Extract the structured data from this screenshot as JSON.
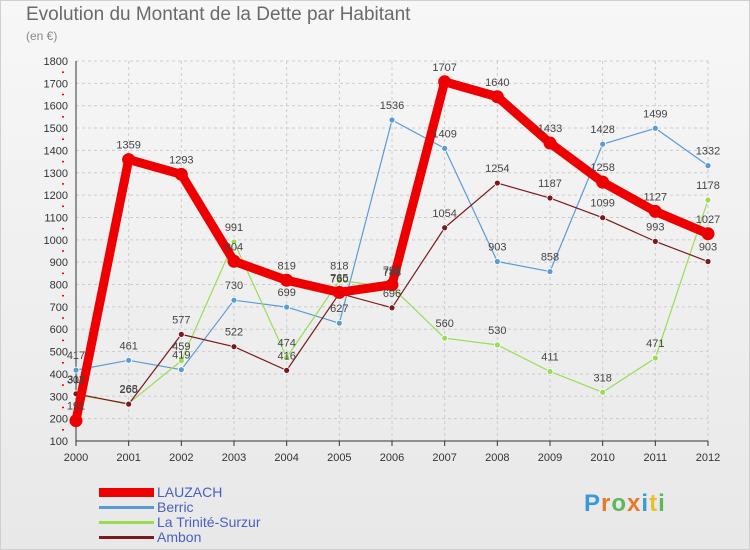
{
  "title": "Evolution du Montant de la Dette par Habitant",
  "subtitle": "(en €)",
  "logo": "Proxiti",
  "colors": {
    "grid": "#cccccc",
    "axis": "#333333",
    "label": "#555555"
  },
  "chart_data": {
    "type": "line",
    "x": [
      "2000",
      "2001",
      "2002",
      "2003",
      "2004",
      "2005",
      "2006",
      "2007",
      "2008",
      "2009",
      "2010",
      "2011",
      "2012"
    ],
    "ylim": [
      100,
      1800
    ],
    "yticks": [
      100,
      200,
      300,
      400,
      500,
      600,
      700,
      800,
      900,
      1000,
      1100,
      1200,
      1300,
      1400,
      1500,
      1600,
      1700,
      1800
    ],
    "grid": true,
    "legend_position": "bottom-left",
    "series": [
      {
        "name": "LAUZACH",
        "color": "#ee0000",
        "width": 9,
        "values": [
          191,
          1359,
          1293,
          904,
          819,
          765,
          799,
          1707,
          1640,
          1433,
          1258,
          1127,
          1027
        ],
        "labels": [
          "191",
          "1359",
          "1293",
          "904",
          "819",
          "765",
          "799",
          "1707",
          "1640",
          "1433",
          "1258",
          "1127",
          "1027"
        ]
      },
      {
        "name": "Berric",
        "color": "#5b9bd5",
        "width": 1.2,
        "values": [
          417,
          461,
          419,
          730,
          699,
          627,
          1536,
          1409,
          903,
          858,
          1428,
          1499,
          1332
        ],
        "labels": [
          "417",
          "461",
          "419",
          "730",
          "699",
          "627",
          "1536",
          "1409",
          "903",
          "858",
          "1428",
          "1499",
          "1332"
        ]
      },
      {
        "name": "La Trinité-Surzur",
        "color": "#99dd55",
        "width": 1.2,
        "values": [
          307,
          268,
          459,
          991,
          474,
          818,
          788,
          560,
          530,
          411,
          318,
          471,
          1178
        ],
        "labels": [
          "307",
          "268",
          "459",
          "991",
          "474",
          "818",
          "788",
          "560",
          "530",
          "411",
          "318",
          "471",
          "1178"
        ]
      },
      {
        "name": "Ambon",
        "color": "#7a1a1a",
        "width": 1.2,
        "values": [
          311,
          265,
          577,
          522,
          416,
          760,
          696,
          1054,
          1254,
          1187,
          1099,
          993,
          903
        ],
        "labels": [
          "311",
          "265",
          "577",
          "522",
          "416",
          "760",
          "696",
          "1054",
          "1254",
          "1187",
          "1099",
          "993",
          "903"
        ]
      }
    ]
  }
}
